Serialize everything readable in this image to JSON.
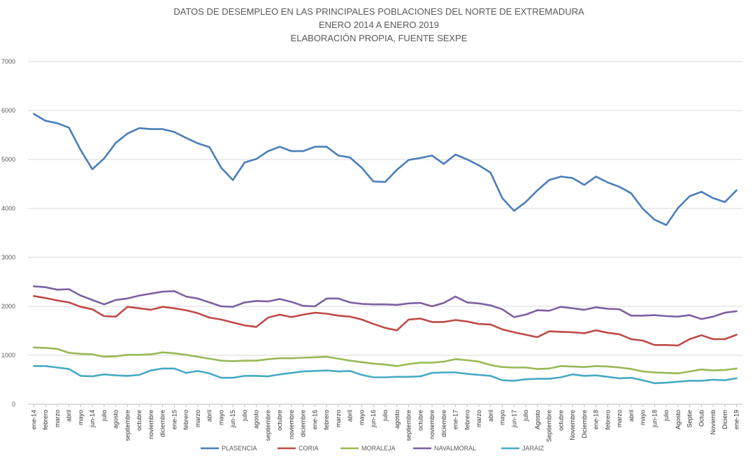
{
  "chart_data": {
    "type": "line",
    "title": [
      "DATOS DE DESEMPLEO EN LAS PRINCIPALES POBLACIONES DEL NORTE DE EXTREMADURA",
      "ENERO 2014 A  ENERO 2019",
      "ELABORACIÓN PROPIA, FUENTE SEXPE"
    ],
    "xlabel": "",
    "ylabel": "",
    "ylim": [
      0,
      7000
    ],
    "yticks": [
      "0",
      "1000",
      "2000",
      "3000",
      "4000",
      "5000",
      "6000",
      "7000"
    ],
    "grid": true,
    "legend_position": "bottom",
    "categories": [
      "ene-14",
      "febrero",
      "marzo",
      "abril",
      "mayo",
      "jun-14",
      "julio",
      "agosto",
      "septiembre",
      "octubre",
      "noviembre",
      "diciembre",
      "ene-15",
      "febrero",
      "marzo",
      "abril",
      "mayo",
      "jun-15",
      "julio",
      "agosto",
      "septiembre",
      "octubre",
      "noviembre",
      "diciembre",
      "ene-16",
      "febrero",
      "marzo",
      "abril",
      "mayo",
      "jun-16",
      "julio",
      "agosto",
      "septiembre",
      "octubre",
      "noviembre",
      "diciembre",
      "ene-17",
      "febrero",
      "marzo",
      "abril",
      "mayo",
      "jun-17",
      "julio",
      "Agosto",
      "Septiembre",
      "octubre",
      "Noviembre",
      "Diciembre",
      "ene-18",
      "febrero",
      "marzo",
      "abril",
      "mayo",
      "jun-18",
      "julio",
      "Agosto",
      "Septie",
      "Octub",
      "Noviemb",
      "Diciem",
      "ene-19"
    ],
    "series": [
      {
        "name": "PLASENCIA",
        "color": "#4a7ebb",
        "values": [
          5930,
          5790,
          5740,
          5650,
          5190,
          4800,
          5020,
          5340,
          5530,
          5640,
          5620,
          5620,
          5560,
          5440,
          5330,
          5250,
          4830,
          4580,
          4940,
          5010,
          5170,
          5260,
          5170,
          5170,
          5260,
          5260,
          5080,
          5040,
          4830,
          4550,
          4540,
          4790,
          4990,
          5030,
          5080,
          4910,
          5100,
          5000,
          4880,
          4730,
          4210,
          3950,
          4130,
          4370,
          4580,
          4650,
          4620,
          4480,
          4650,
          4530,
          4440,
          4310,
          3990,
          3770,
          3660,
          4010,
          4250,
          4340,
          4210,
          4130,
          4370
        ]
      },
      {
        "name": "CORIA",
        "color": "#be4b48",
        "values": [
          2210,
          2170,
          2120,
          2080,
          1990,
          1940,
          1800,
          1790,
          1990,
          1960,
          1930,
          1990,
          1960,
          1920,
          1860,
          1770,
          1730,
          1670,
          1610,
          1580,
          1770,
          1830,
          1780,
          1830,
          1870,
          1850,
          1810,
          1790,
          1730,
          1640,
          1560,
          1510,
          1730,
          1750,
          1680,
          1680,
          1720,
          1690,
          1640,
          1630,
          1530,
          1470,
          1420,
          1370,
          1490,
          1480,
          1470,
          1450,
          1510,
          1460,
          1430,
          1330,
          1300,
          1210,
          1210,
          1200,
          1330,
          1410,
          1330,
          1330,
          1420
        ]
      },
      {
        "name": "MORALEJA",
        "color": "#98b954",
        "values": [
          1160,
          1150,
          1130,
          1050,
          1030,
          1020,
          970,
          980,
          1010,
          1010,
          1020,
          1060,
          1040,
          1010,
          970,
          930,
          890,
          880,
          890,
          890,
          920,
          940,
          940,
          950,
          960,
          970,
          930,
          890,
          860,
          830,
          810,
          780,
          820,
          850,
          850,
          870,
          920,
          900,
          870,
          800,
          760,
          750,
          750,
          720,
          730,
          780,
          770,
          760,
          780,
          770,
          750,
          720,
          670,
          650,
          640,
          630,
          670,
          710,
          690,
          700,
          730
        ]
      },
      {
        "name": "NAVALMORAL",
        "color": "#7d60a0",
        "values": [
          2410,
          2390,
          2340,
          2350,
          2220,
          2130,
          2040,
          2130,
          2160,
          2220,
          2260,
          2300,
          2310,
          2200,
          2160,
          2080,
          2000,
          1990,
          2080,
          2110,
          2100,
          2150,
          2090,
          2010,
          2000,
          2160,
          2160,
          2080,
          2050,
          2040,
          2040,
          2030,
          2060,
          2070,
          2000,
          2070,
          2200,
          2080,
          2060,
          2020,
          1940,
          1780,
          1830,
          1920,
          1910,
          1990,
          1960,
          1930,
          1980,
          1950,
          1940,
          1810,
          1810,
          1820,
          1800,
          1790,
          1820,
          1740,
          1790,
          1870,
          1900
        ]
      },
      {
        "name": "JARAIZ",
        "color": "#46aac5",
        "values": [
          780,
          780,
          750,
          720,
          580,
          570,
          610,
          590,
          580,
          600,
          690,
          730,
          730,
          640,
          680,
          630,
          540,
          540,
          580,
          580,
          570,
          610,
          640,
          670,
          680,
          690,
          670,
          680,
          600,
          550,
          550,
          560,
          560,
          570,
          640,
          650,
          650,
          620,
          600,
          580,
          490,
          480,
          510,
          520,
          520,
          550,
          610,
          580,
          590,
          560,
          530,
          540,
          490,
          430,
          440,
          460,
          480,
          480,
          500,
          490,
          530
        ]
      }
    ]
  }
}
